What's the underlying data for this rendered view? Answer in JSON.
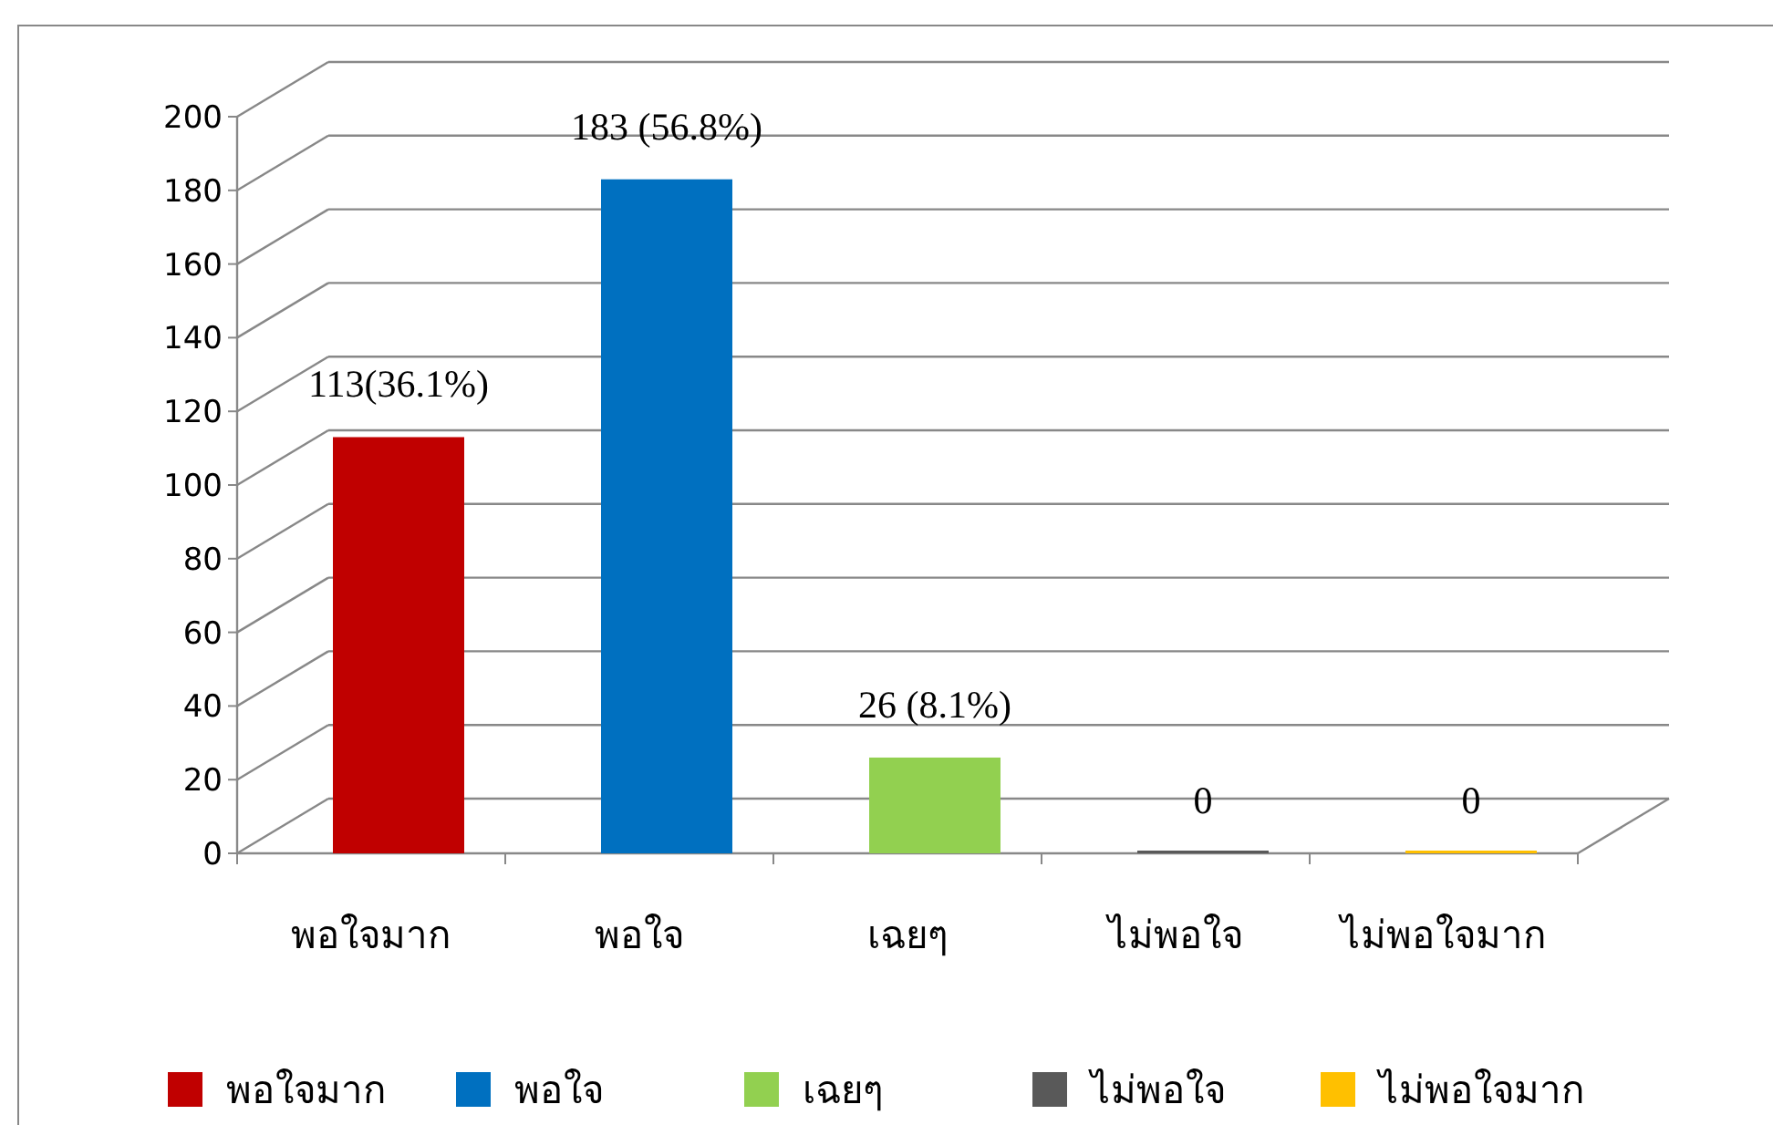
{
  "chart_data": {
    "type": "bar",
    "categories": [
      "พอใจมาก",
      "พอใจ",
      "เฉยๆ",
      "ไม่พอใจ",
      "ไม่พอใจมาก"
    ],
    "series": [
      {
        "name": "พอใจมาก",
        "color": "#c00000",
        "values": [
          113,
          null,
          null,
          null,
          null
        ],
        "value_labels": [
          "113(36.1%)",
          null,
          null,
          null,
          null
        ]
      },
      {
        "name": "พอใจ",
        "color": "#0070c0",
        "values": [
          null,
          183,
          null,
          null,
          null
        ],
        "value_labels": [
          null,
          "183 (56.8%)",
          null,
          null,
          null
        ]
      },
      {
        "name": "เฉยๆ",
        "color": "#92d050",
        "values": [
          null,
          null,
          26,
          null,
          null
        ],
        "value_labels": [
          null,
          null,
          "26 (8.1%)",
          null,
          null
        ]
      },
      {
        "name": "ไม่พอใจ",
        "color": "#595959",
        "values": [
          null,
          null,
          null,
          0,
          null
        ],
        "value_labels": [
          null,
          null,
          null,
          "0",
          null
        ]
      },
      {
        "name": "ไม่พอใจมาก",
        "color": "#ffc000",
        "values": [
          null,
          null,
          null,
          null,
          0
        ],
        "value_labels": [
          null,
          null,
          null,
          null,
          "0"
        ]
      }
    ],
    "ylim": [
      0,
      200
    ],
    "yticks": [
      0,
      20,
      40,
      60,
      80,
      100,
      120,
      140,
      160,
      180,
      200
    ],
    "grid": "y",
    "legend": "bottom"
  }
}
